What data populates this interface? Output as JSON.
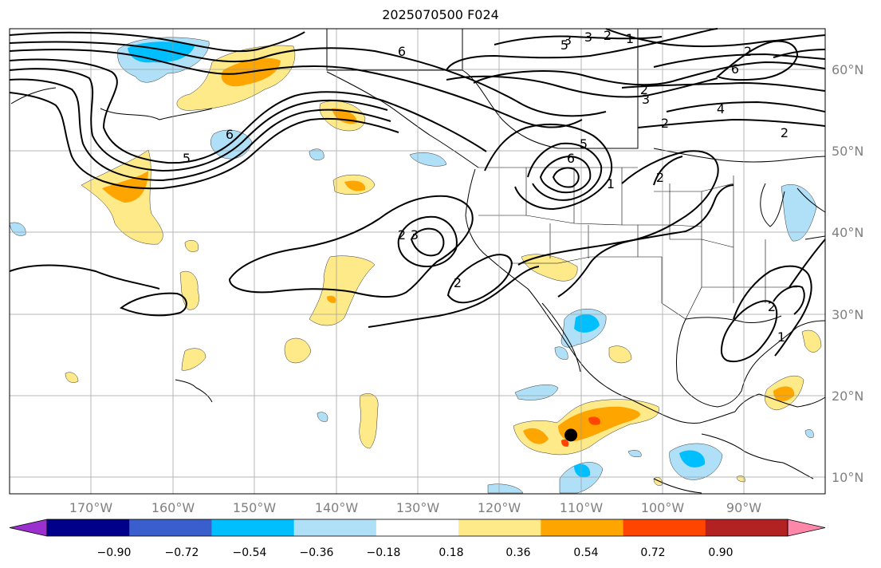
{
  "title": "2025070500 F024",
  "map": {
    "projection": "plate-carree",
    "lon_range": [
      -180,
      -78
    ],
    "lat_range": [
      8,
      65
    ],
    "lon_ticks": [
      "170°W",
      "160°W",
      "150°W",
      "140°W",
      "130°W",
      "120°W",
      "110°W",
      "100°W",
      "90°W"
    ],
    "lat_ticks": [
      "60°N",
      "50°N",
      "40°N",
      "30°N",
      "20°N",
      "10°N"
    ],
    "grid": true,
    "contour_labels": [
      "6",
      "5",
      "3",
      "2",
      "1",
      "6",
      "3",
      "2",
      "5",
      "6",
      "2",
      "5",
      "3",
      "2",
      "1",
      "2",
      "2",
      "3",
      "2",
      "2",
      "4",
      "6",
      "2",
      "1"
    ],
    "marker": {
      "name": "point",
      "lon": -109.8,
      "lat": 15.2,
      "color": "#000000"
    }
  },
  "colorbar": {
    "ticks": [
      "−0.90",
      "−0.72",
      "−0.54",
      "−0.36",
      "−0.18",
      "0.18",
      "0.36",
      "0.54",
      "0.72",
      "0.90"
    ],
    "colors": [
      "#9b30d0",
      "#00008b",
      "#3a5fcd",
      "#00bfff",
      "#b0e0f8",
      "#ffffff",
      "#ffea8a",
      "#ffa500",
      "#ff4500",
      "#b22222",
      "#ff88aa"
    ]
  }
}
